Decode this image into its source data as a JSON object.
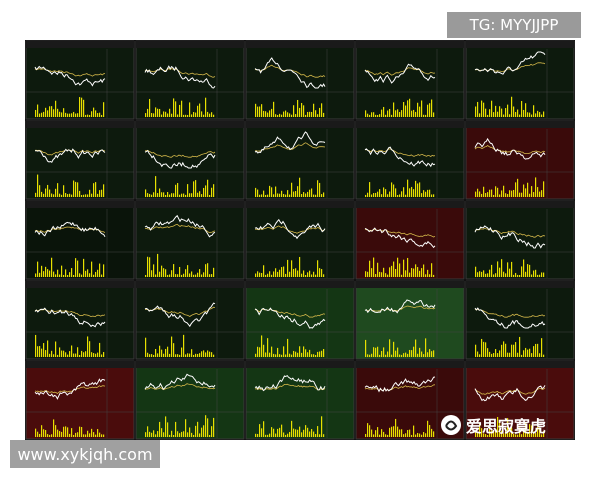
{
  "watermark_top": "TG: MYYJJPP",
  "watermark_bottom": "www.xykjqh.com",
  "logo_text": "爱思寂寞虎"
}
